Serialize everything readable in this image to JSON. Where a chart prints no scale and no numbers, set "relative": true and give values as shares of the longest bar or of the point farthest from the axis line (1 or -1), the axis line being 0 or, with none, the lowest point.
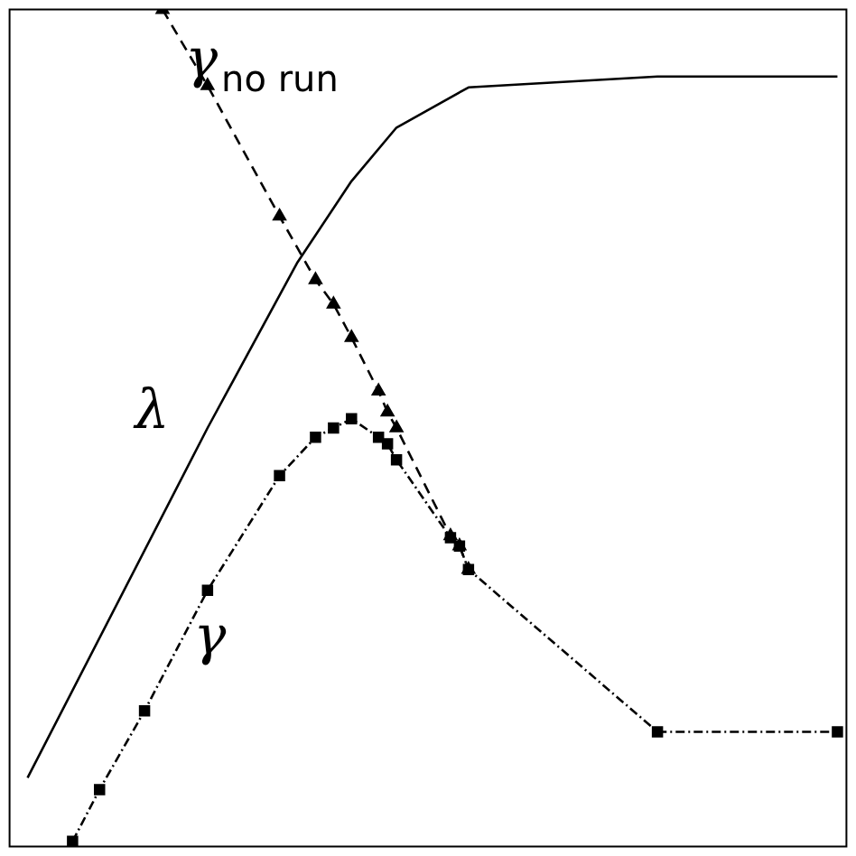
{
  "chart_data": {
    "type": "line",
    "relative": true,
    "legend": false,
    "categories": [
      null,
      null,
      null,
      null,
      null,
      null,
      null,
      null,
      null,
      null,
      null,
      null,
      null,
      null,
      null,
      null,
      null,
      null,
      null,
      null,
      null,
      null,
      null,
      null,
      null,
      null,
      null,
      null,
      null,
      null,
      null,
      null,
      null,
      null,
      null,
      null,
      null,
      null,
      null,
      null,
      null,
      null,
      null,
      null,
      null,
      null,
      null,
      null,
      null,
      null,
      null,
      null,
      null,
      null,
      null,
      null,
      null,
      null,
      null,
      null,
      null,
      null,
      null,
      null,
      null,
      null,
      null,
      null,
      null,
      null,
      null,
      null,
      null,
      null,
      null,
      null,
      null,
      null,
      null,
      null,
      null,
      null,
      null,
      null,
      null,
      null,
      null,
      null,
      null,
      null,
      null,
      null,
      null,
      null
    ],
    "series": [
      {
        "name": "λ",
        "color": "#000000",
        "line_style": "solid",
        "marker": "none",
        "values": [
          null,
          null,
          0.082,
          null,
          null,
          null,
          null,
          null,
          null,
          null,
          null,
          null,
          null,
          null,
          null,
          null,
          null,
          null,
          null,
          null,
          null,
          null,
          0.5,
          null,
          null,
          null,
          null,
          null,
          null,
          null,
          null,
          null,
          0.698,
          null,
          null,
          null,
          null,
          null,
          0.795,
          null,
          null,
          null,
          null,
          0.859,
          null,
          null,
          null,
          null,
          null,
          null,
          null,
          0.907,
          null,
          null,
          null,
          null,
          null,
          null,
          null,
          null,
          null,
          null,
          null,
          null,
          null,
          null,
          null,
          null,
          null,
          null,
          null,
          null,
          0.92,
          null,
          null,
          null,
          null,
          null,
          null,
          null,
          null,
          null,
          null,
          null,
          null,
          null,
          null,
          null,
          null,
          null,
          null,
          null,
          0.92,
          null
        ]
      },
      {
        "name": "γ",
        "color": "#000000",
        "line_style": "dotted",
        "marker": "square",
        "values": [
          null,
          null,
          null,
          null,
          null,
          null,
          null,
          0.006,
          null,
          null,
          0.068,
          null,
          null,
          null,
          null,
          0.162,
          null,
          null,
          null,
          null,
          null,
          null,
          0.306,
          null,
          null,
          null,
          null,
          null,
          null,
          null,
          0.443,
          null,
          null,
          null,
          0.489,
          null,
          0.5,
          null,
          0.511,
          null,
          null,
          0.489,
          0.481,
          0.462,
          null,
          null,
          null,
          null,
          null,
          0.369,
          0.359,
          0.331,
          null,
          null,
          null,
          null,
          null,
          null,
          null,
          null,
          null,
          null,
          null,
          null,
          null,
          null,
          null,
          null,
          null,
          null,
          null,
          null,
          0.137,
          null,
          null,
          null,
          null,
          null,
          null,
          null,
          null,
          null,
          null,
          null,
          null,
          null,
          null,
          null,
          null,
          null,
          null,
          null,
          0.137,
          null
        ]
      },
      {
        "name": "γ$_{no run}$",
        "color": "#000000",
        "line_style": "dashed",
        "marker": "triangle",
        "values": [
          null,
          null,
          null,
          null,
          null,
          null,
          null,
          null,
          null,
          null,
          null,
          null,
          null,
          null,
          null,
          null,
          null,
          1,
          null,
          null,
          null,
          null,
          0.909,
          null,
          null,
          null,
          null,
          null,
          null,
          null,
          0.753,
          null,
          null,
          null,
          0.677,
          null,
          0.648,
          null,
          0.608,
          null,
          null,
          0.544,
          0.519,
          0.5,
          null,
          null,
          null,
          null,
          null,
          0.371,
          0.359,
          0.331,
          null,
          null,
          null,
          null,
          null,
          null,
          null,
          null,
          null,
          null,
          null,
          null,
          null,
          null,
          null,
          null,
          null,
          null,
          null,
          null,
          null,
          null,
          null,
          null,
          null,
          null,
          null,
          null,
          null,
          null,
          null,
          null,
          null,
          null,
          null,
          null,
          null,
          null,
          null,
          null,
          null,
          null
        ]
      }
    ]
  }
}
